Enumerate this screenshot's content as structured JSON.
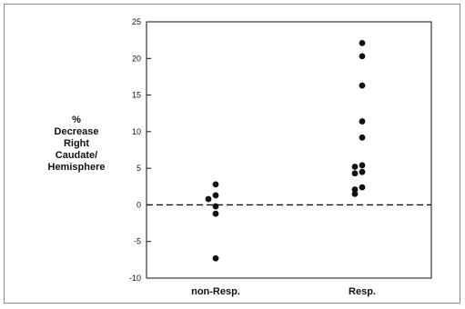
{
  "chart_data": {
    "type": "scatter",
    "ylabel_lines": [
      "%",
      "Decrease",
      "Right",
      "Caudate/",
      "Hemisphere"
    ],
    "categories": [
      "non-Resp.",
      "Resp."
    ],
    "ylim": [
      -10,
      25
    ],
    "yticks": [
      "25",
      "20",
      "15",
      "10",
      "5",
      "0",
      "-5",
      "-10"
    ],
    "reference_line": {
      "y": 0,
      "style": "dashed"
    },
    "grid": false,
    "series": [
      {
        "category": "non-Resp.",
        "values": [
          2.8,
          1.3,
          0.8,
          -0.2,
          -1.2,
          -7.3
        ]
      },
      {
        "category": "Resp.",
        "values": [
          22.1,
          20.3,
          16.3,
          11.4,
          9.2,
          5.4,
          5.2,
          4.5,
          4.3,
          2.4,
          2.1,
          1.5
        ]
      }
    ],
    "point_color": "#111111"
  }
}
